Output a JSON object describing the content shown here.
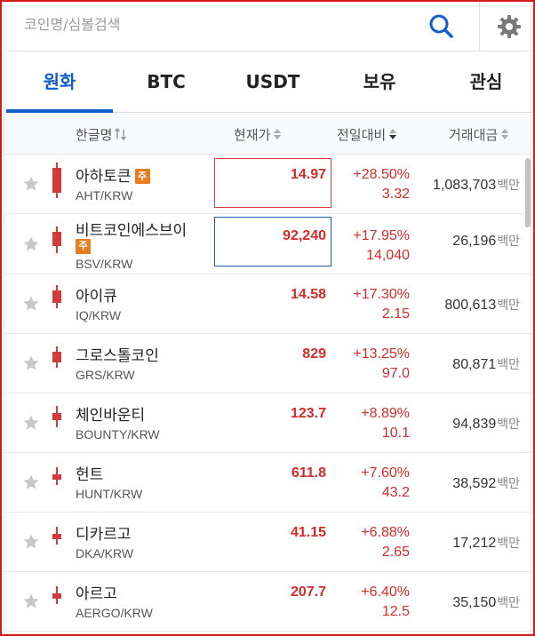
{
  "search": {
    "placeholder": "코인명/심볼검색",
    "search_icon": "search-icon",
    "settings_icon": "gear-icon"
  },
  "tabs": [
    {
      "label": "원화",
      "active": true
    },
    {
      "label": "BTC",
      "active": false
    },
    {
      "label": "USDT",
      "active": false
    },
    {
      "label": "보유",
      "active": false
    },
    {
      "label": "관심",
      "active": false
    }
  ],
  "columns": {
    "name": "한글명",
    "price": "현재가",
    "change": "전일대비",
    "volume": "거래대금"
  },
  "volume_unit": "백만",
  "badge_label": "주",
  "colors": {
    "accent": "#115dcb",
    "rise": "#d42b2b",
    "badge": "#e87c1e",
    "frame": "#d21b1b"
  },
  "rows": [
    {
      "name": "아하토큰",
      "symbol": "AHT/KRW",
      "price": "14.97",
      "rate": "+28.50%",
      "diff": "3.32",
      "volume": "1,083,703",
      "badge": true
    },
    {
      "name": "비트코인에스브이",
      "symbol": "BSV/KRW",
      "price": "92,240",
      "rate": "+17.95%",
      "diff": "14,040",
      "volume": "26,196",
      "badge": true
    },
    {
      "name": "아이큐",
      "symbol": "IQ/KRW",
      "price": "14.58",
      "rate": "+17.30%",
      "diff": "2.15",
      "volume": "800,613",
      "badge": false
    },
    {
      "name": "그로스톨코인",
      "symbol": "GRS/KRW",
      "price": "829",
      "rate": "+13.25%",
      "diff": "97.0",
      "volume": "80,871",
      "badge": false
    },
    {
      "name": "체인바운티",
      "symbol": "BOUNTY/KRW",
      "price": "123.7",
      "rate": "+8.89%",
      "diff": "10.1",
      "volume": "94,839",
      "badge": false
    },
    {
      "name": "헌트",
      "symbol": "HUNT/KRW",
      "price": "611.8",
      "rate": "+7.60%",
      "diff": "43.2",
      "volume": "38,592",
      "badge": false
    },
    {
      "name": "디카르고",
      "symbol": "DKA/KRW",
      "price": "41.15",
      "rate": "+6.88%",
      "diff": "2.65",
      "volume": "17,212",
      "badge": false
    },
    {
      "name": "아르고",
      "symbol": "AERGO/KRW",
      "price": "207.7",
      "rate": "+6.40%",
      "diff": "12.5",
      "volume": "35,150",
      "badge": false
    }
  ]
}
